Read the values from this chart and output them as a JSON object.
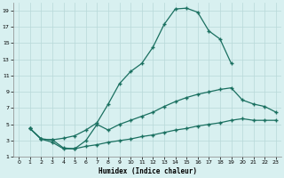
{
  "xlabel": "Humidex (Indice chaleur)",
  "bg_color": "#d8f0f0",
  "grid_color": "#b8d8d8",
  "line_color": "#1a7060",
  "xlim": [
    -0.5,
    23.5
  ],
  "ylim": [
    1,
    20
  ],
  "xticks": [
    0,
    1,
    2,
    3,
    4,
    5,
    6,
    7,
    8,
    9,
    10,
    11,
    12,
    13,
    14,
    15,
    16,
    17,
    18,
    19,
    20,
    21,
    22,
    23
  ],
  "yticks": [
    1,
    3,
    5,
    7,
    9,
    11,
    13,
    15,
    17,
    19
  ],
  "line1_x": [
    1,
    2,
    3,
    4,
    5,
    6,
    7,
    8,
    9,
    10,
    11,
    12,
    13,
    14,
    15,
    16,
    17,
    18,
    19
  ],
  "line1_y": [
    4.5,
    3.2,
    3.1,
    3.3,
    3.6,
    4.3,
    5.2,
    7.5,
    10.0,
    11.5,
    12.5,
    14.5,
    17.3,
    19.2,
    19.3,
    18.8,
    16.5,
    15.5,
    12.5
  ],
  "line2_x": [
    1,
    2,
    3,
    4,
    5,
    6,
    7,
    8,
    9,
    10,
    11,
    12,
    13,
    14,
    15,
    16,
    17,
    18,
    19,
    20,
    21,
    22,
    23
  ],
  "line2_y": [
    4.5,
    3.2,
    3.1,
    2.1,
    2.0,
    3.0,
    5.0,
    4.3,
    5.0,
    5.5,
    6.0,
    6.5,
    7.2,
    7.8,
    8.3,
    8.7,
    9.0,
    9.3,
    9.5,
    8.0,
    7.5,
    7.2,
    6.5
  ],
  "line3_x": [
    1,
    2,
    3,
    4,
    5,
    6,
    7,
    8,
    9,
    10,
    11,
    12,
    13,
    14,
    15,
    16,
    17,
    18,
    19,
    20,
    21,
    22,
    23
  ],
  "line3_y": [
    4.5,
    3.2,
    2.8,
    2.0,
    2.0,
    2.3,
    2.5,
    2.8,
    3.0,
    3.2,
    3.5,
    3.7,
    4.0,
    4.3,
    4.5,
    4.8,
    5.0,
    5.2,
    5.5,
    5.7,
    5.5,
    5.5,
    5.5
  ]
}
